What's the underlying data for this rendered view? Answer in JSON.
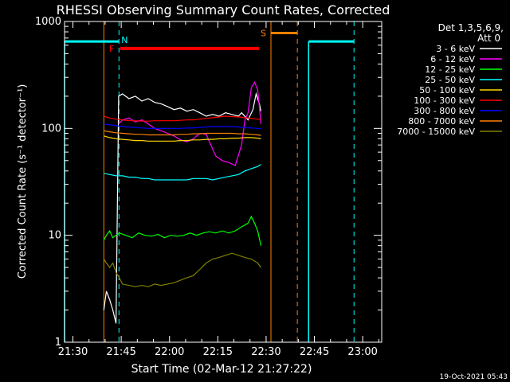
{
  "chart_data": {
    "type": "line",
    "title": "RHESSI Observing Summary Count Rates, Corrected",
    "xlabel": "Start Time (02-Mar-12 21:27:22)",
    "ylabel": "Corrected Count Rate (s⁻¹ detector⁻¹)",
    "x_unit": "minutes since 21:27:22",
    "xlim": [
      0,
      98.5
    ],
    "ylim": [
      1,
      1000
    ],
    "yscale": "log",
    "x_ticks": [
      {
        "label": "21:30",
        "x": 2.6
      },
      {
        "label": "21:45",
        "x": 17.6
      },
      {
        "label": "22:00",
        "x": 32.6
      },
      {
        "label": "22:15",
        "x": 47.6
      },
      {
        "label": "22:30",
        "x": 62.6
      },
      {
        "label": "22:45",
        "x": 77.6
      },
      {
        "label": "23:00",
        "x": 92.6
      }
    ],
    "y_ticks": [
      {
        "label": "1",
        "y": 1
      },
      {
        "label": "10",
        "y": 10
      },
      {
        "label": "100",
        "y": 100
      },
      {
        "label": "1000",
        "y": 1000
      }
    ],
    "legend": {
      "title1": "Det 1,3,5,6,9,",
      "title2": "Att 0",
      "position": "right"
    },
    "series": [
      {
        "name": "3 - 6 keV",
        "color": "#ffffff",
        "points": [
          [
            12.2,
            2
          ],
          [
            13,
            3
          ],
          [
            14,
            2.5
          ],
          [
            15,
            2
          ],
          [
            16,
            1.5
          ],
          [
            16.8,
            200
          ],
          [
            18,
            210
          ],
          [
            20,
            190
          ],
          [
            22,
            200
          ],
          [
            24,
            180
          ],
          [
            26,
            190
          ],
          [
            28,
            175
          ],
          [
            30,
            170
          ],
          [
            32,
            160
          ],
          [
            34,
            150
          ],
          [
            36,
            155
          ],
          [
            38,
            145
          ],
          [
            40,
            150
          ],
          [
            42,
            140
          ],
          [
            44,
            130
          ],
          [
            46,
            135
          ],
          [
            48,
            130
          ],
          [
            50,
            140
          ],
          [
            52,
            135
          ],
          [
            54,
            130
          ],
          [
            55,
            140
          ],
          [
            57,
            120
          ],
          [
            58.5,
            150
          ],
          [
            59.5,
            210
          ],
          [
            60.5,
            170
          ],
          [
            61,
            145
          ]
        ]
      },
      {
        "name": "6 - 12 keV",
        "color": "#ff00ff",
        "points": [
          [
            16.8,
            110
          ],
          [
            18,
            120
          ],
          [
            20,
            125
          ],
          [
            22,
            115
          ],
          [
            24,
            120
          ],
          [
            26,
            110
          ],
          [
            28,
            100
          ],
          [
            30,
            95
          ],
          [
            32,
            90
          ],
          [
            34,
            85
          ],
          [
            36,
            78
          ],
          [
            38,
            75
          ],
          [
            40,
            80
          ],
          [
            42,
            90
          ],
          [
            44,
            88
          ],
          [
            45,
            75
          ],
          [
            47,
            55
          ],
          [
            49,
            50
          ],
          [
            51,
            48
          ],
          [
            53,
            45
          ],
          [
            55,
            70
          ],
          [
            56,
            120
          ],
          [
            57,
            140
          ],
          [
            58,
            240
          ],
          [
            59,
            270
          ],
          [
            60,
            230
          ],
          [
            61,
            110
          ]
        ]
      },
      {
        "name": "12 - 25 keV",
        "color": "#00ff00",
        "points": [
          [
            12.2,
            9
          ],
          [
            13,
            10
          ],
          [
            14,
            11
          ],
          [
            15,
            9.5
          ],
          [
            16,
            10
          ],
          [
            17,
            10.5
          ],
          [
            19,
            10
          ],
          [
            21,
            9.5
          ],
          [
            23,
            10.5
          ],
          [
            25,
            10
          ],
          [
            27,
            9.8
          ],
          [
            29,
            10.2
          ],
          [
            31,
            9.5
          ],
          [
            33,
            10
          ],
          [
            35,
            9.8
          ],
          [
            37,
            10
          ],
          [
            39,
            10.5
          ],
          [
            41,
            10
          ],
          [
            43,
            10.5
          ],
          [
            45,
            10.8
          ],
          [
            47,
            10.5
          ],
          [
            49,
            11
          ],
          [
            51,
            10.5
          ],
          [
            53,
            11
          ],
          [
            55,
            12
          ],
          [
            57,
            13
          ],
          [
            58,
            15
          ],
          [
            59,
            13
          ],
          [
            60,
            11
          ],
          [
            61,
            8
          ]
        ]
      },
      {
        "name": "25 - 50 keV",
        "color": "#00ffff",
        "points": [
          [
            12.2,
            38
          ],
          [
            14,
            37
          ],
          [
            16,
            36
          ],
          [
            18,
            36
          ],
          [
            20,
            35
          ],
          [
            22,
            35
          ],
          [
            24,
            34
          ],
          [
            26,
            34
          ],
          [
            28,
            33
          ],
          [
            30,
            33
          ],
          [
            32,
            33
          ],
          [
            34,
            33
          ],
          [
            36,
            33
          ],
          [
            38,
            33
          ],
          [
            40,
            34
          ],
          [
            42,
            34
          ],
          [
            44,
            34
          ],
          [
            46,
            33
          ],
          [
            48,
            34
          ],
          [
            50,
            35
          ],
          [
            52,
            36
          ],
          [
            54,
            37
          ],
          [
            56,
            40
          ],
          [
            58,
            42
          ],
          [
            60,
            44
          ],
          [
            61,
            46
          ]
        ]
      },
      {
        "name": "50 - 100 keV",
        "color": "#ffd800",
        "points": [
          [
            12.2,
            85
          ],
          [
            14,
            82
          ],
          [
            16,
            80
          ],
          [
            18,
            79
          ],
          [
            20,
            78
          ],
          [
            22,
            77
          ],
          [
            24,
            77
          ],
          [
            26,
            76
          ],
          [
            28,
            76
          ],
          [
            30,
            76
          ],
          [
            32,
            76
          ],
          [
            34,
            76
          ],
          [
            36,
            77
          ],
          [
            38,
            77
          ],
          [
            40,
            78
          ],
          [
            42,
            78
          ],
          [
            44,
            79
          ],
          [
            46,
            79
          ],
          [
            48,
            80
          ],
          [
            50,
            80
          ],
          [
            52,
            81
          ],
          [
            54,
            81
          ],
          [
            56,
            82
          ],
          [
            58,
            82
          ],
          [
            60,
            81
          ],
          [
            61,
            80
          ]
        ]
      },
      {
        "name": "100 - 300 keV",
        "color": "#ff0000",
        "points": [
          [
            12.2,
            130
          ],
          [
            14,
            125
          ],
          [
            16,
            122
          ],
          [
            18,
            120
          ],
          [
            20,
            118
          ],
          [
            22,
            118
          ],
          [
            24,
            117
          ],
          [
            26,
            117
          ],
          [
            28,
            118
          ],
          [
            30,
            118
          ],
          [
            32,
            118
          ],
          [
            34,
            118
          ],
          [
            36,
            119
          ],
          [
            38,
            120
          ],
          [
            40,
            120
          ],
          [
            42,
            122
          ],
          [
            44,
            124
          ],
          [
            46,
            126
          ],
          [
            48,
            128
          ],
          [
            50,
            130
          ],
          [
            52,
            129
          ],
          [
            54,
            128
          ],
          [
            56,
            126
          ],
          [
            58,
            124
          ],
          [
            60,
            122
          ],
          [
            61,
            120
          ]
        ]
      },
      {
        "name": "300 - 800 keV",
        "color": "#0000ff",
        "points": [
          [
            12.2,
            110
          ],
          [
            14,
            108
          ],
          [
            16,
            106
          ],
          [
            18,
            104
          ],
          [
            20,
            103
          ],
          [
            22,
            102
          ],
          [
            24,
            101
          ],
          [
            26,
            100
          ],
          [
            28,
            100
          ],
          [
            30,
            100
          ],
          [
            32,
            100
          ],
          [
            34,
            100
          ],
          [
            36,
            100
          ],
          [
            38,
            101
          ],
          [
            40,
            101
          ],
          [
            42,
            102
          ],
          [
            44,
            103
          ],
          [
            46,
            104
          ],
          [
            48,
            104
          ],
          [
            50,
            104
          ],
          [
            52,
            104
          ],
          [
            54,
            103
          ],
          [
            56,
            102
          ],
          [
            58,
            101
          ],
          [
            60,
            100
          ],
          [
            61,
            99
          ]
        ]
      },
      {
        "name": "800 - 7000 keV",
        "color": "#ff8000",
        "points": [
          [
            12.2,
            95
          ],
          [
            14,
            93
          ],
          [
            16,
            91
          ],
          [
            18,
            90
          ],
          [
            20,
            89
          ],
          [
            22,
            88
          ],
          [
            24,
            88
          ],
          [
            26,
            87
          ],
          [
            28,
            87
          ],
          [
            30,
            87
          ],
          [
            32,
            87
          ],
          [
            34,
            87
          ],
          [
            36,
            88
          ],
          [
            38,
            88
          ],
          [
            40,
            89
          ],
          [
            42,
            89
          ],
          [
            44,
            90
          ],
          [
            46,
            90
          ],
          [
            48,
            90
          ],
          [
            50,
            90
          ],
          [
            52,
            90
          ],
          [
            54,
            89
          ],
          [
            56,
            89
          ],
          [
            58,
            88
          ],
          [
            60,
            87
          ],
          [
            61,
            86
          ]
        ]
      },
      {
        "name": "7000 - 15000 keV",
        "color": "#808000",
        "points": [
          [
            12.2,
            6
          ],
          [
            13,
            5.5
          ],
          [
            14,
            5
          ],
          [
            15,
            5.5
          ],
          [
            16,
            4.5
          ],
          [
            17,
            4
          ],
          [
            18,
            3.5
          ],
          [
            20,
            3.4
          ],
          [
            22,
            3.3
          ],
          [
            24,
            3.4
          ],
          [
            26,
            3.3
          ],
          [
            28,
            3.5
          ],
          [
            30,
            3.4
          ],
          [
            32,
            3.5
          ],
          [
            34,
            3.6
          ],
          [
            36,
            3.8
          ],
          [
            38,
            4
          ],
          [
            40,
            4.2
          ],
          [
            42,
            4.8
          ],
          [
            44,
            5.5
          ],
          [
            46,
            6
          ],
          [
            48,
            6.2
          ],
          [
            50,
            6.5
          ],
          [
            52,
            6.8
          ],
          [
            54,
            6.5
          ],
          [
            56,
            6.2
          ],
          [
            58,
            6
          ],
          [
            60,
            5.5
          ],
          [
            61,
            5
          ]
        ]
      }
    ],
    "flags": [
      {
        "label": "N",
        "color": "#00ffff",
        "kind": "night",
        "solid": [
          [
            0,
            16.9
          ],
          [
            75.8,
            89.9
          ]
        ],
        "dashed": [
          16.9,
          89.9
        ],
        "level": 650
      },
      {
        "label": "F",
        "color": "#ff0000",
        "kind": "flare",
        "solid": [
          [
            17.3,
            60.4
          ]
        ],
        "level": 560
      },
      {
        "label": "S",
        "color": "#ff8000",
        "kind": "saa",
        "solid": [
          [
            64.1,
            72.3
          ]
        ],
        "dashed": [
          72.3
        ],
        "level": 780
      }
    ],
    "orange_start": 12.2,
    "saa_start": 64.1
  },
  "footer": {
    "date_stamp": "19-Oct-2021 05:43"
  }
}
